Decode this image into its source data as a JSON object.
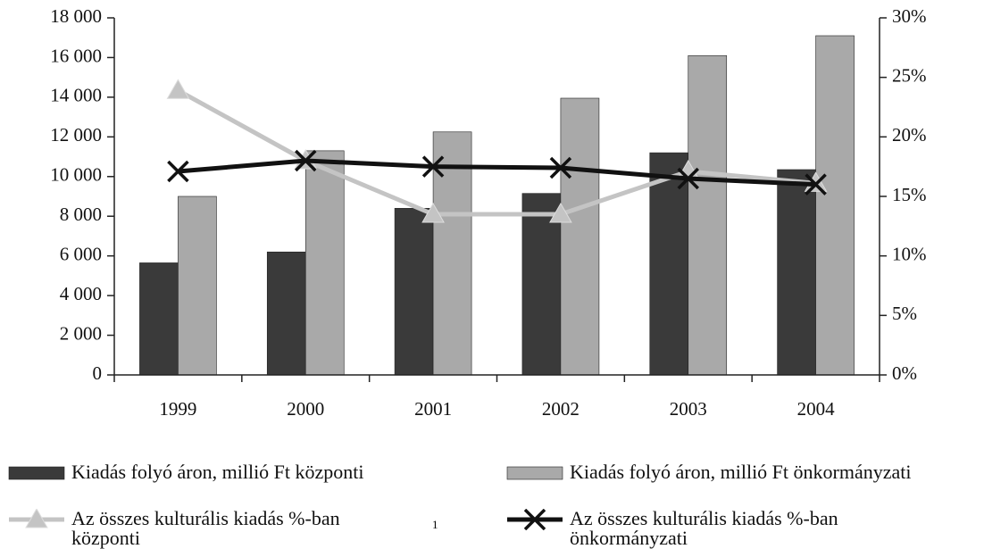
{
  "chart_data": {
    "type": "bar",
    "categories": [
      "1999",
      "2000",
      "2001",
      "2002",
      "2003",
      "2004"
    ],
    "series": [
      {
        "name": "Kiadás folyó áron, millió Ft központi",
        "type": "bar",
        "color": "#3a3a3a",
        "values": [
          5650,
          6200,
          8400,
          9150,
          11200,
          10350
        ]
      },
      {
        "name": "Kiadás folyó áron, millió Ft önkormányzati",
        "type": "bar",
        "color": "#a9a9a9",
        "values": [
          9000,
          11300,
          12250,
          13950,
          16100,
          17100
        ]
      },
      {
        "name": "Az összes kulturális kiadás %-ban központi",
        "type": "line",
        "axis": "y2",
        "marker": "triangle",
        "color": "#c4c4c4",
        "values": [
          23.9,
          18,
          13.5,
          13.5,
          17.1,
          16.1
        ]
      },
      {
        "name": "Az összes kulturális kiadás %-ban önkormányzati",
        "type": "line",
        "axis": "y2",
        "marker": "x",
        "color": "#111111",
        "values": [
          17.1,
          18,
          17.5,
          17.4,
          16.5,
          16
        ]
      }
    ],
    "ylim": [
      0,
      18000
    ],
    "yticks": [
      0,
      {
        "value": 2000,
        "label": "2 000"
      },
      {
        "value": 4000,
        "label": "4 000"
      },
      {
        "value": 6000,
        "label": "6 000"
      },
      {
        "value": 8000,
        "label": "8 000"
      },
      {
        "value": 10000,
        "label": "10 000"
      },
      {
        "value": 12000,
        "label": "12 000"
      },
      {
        "value": 14000,
        "label": "14 000"
      },
      {
        "value": 16000,
        "label": "16 000"
      },
      {
        "value": 18000,
        "label": "18 000"
      }
    ],
    "y2lim": [
      0,
      30
    ],
    "y2ticks": [
      {
        "value": 0,
        "label": "0%"
      },
      {
        "value": 5,
        "label": "5%"
      },
      {
        "value": 10,
        "label": "10%"
      },
      {
        "value": 15,
        "label": "15%"
      },
      {
        "value": 20,
        "label": "20%"
      },
      {
        "value": 25,
        "label": "25%"
      },
      {
        "value": 30,
        "label": "30%"
      }
    ],
    "grid": false,
    "legend": "bottom",
    "page_number": "1"
  }
}
